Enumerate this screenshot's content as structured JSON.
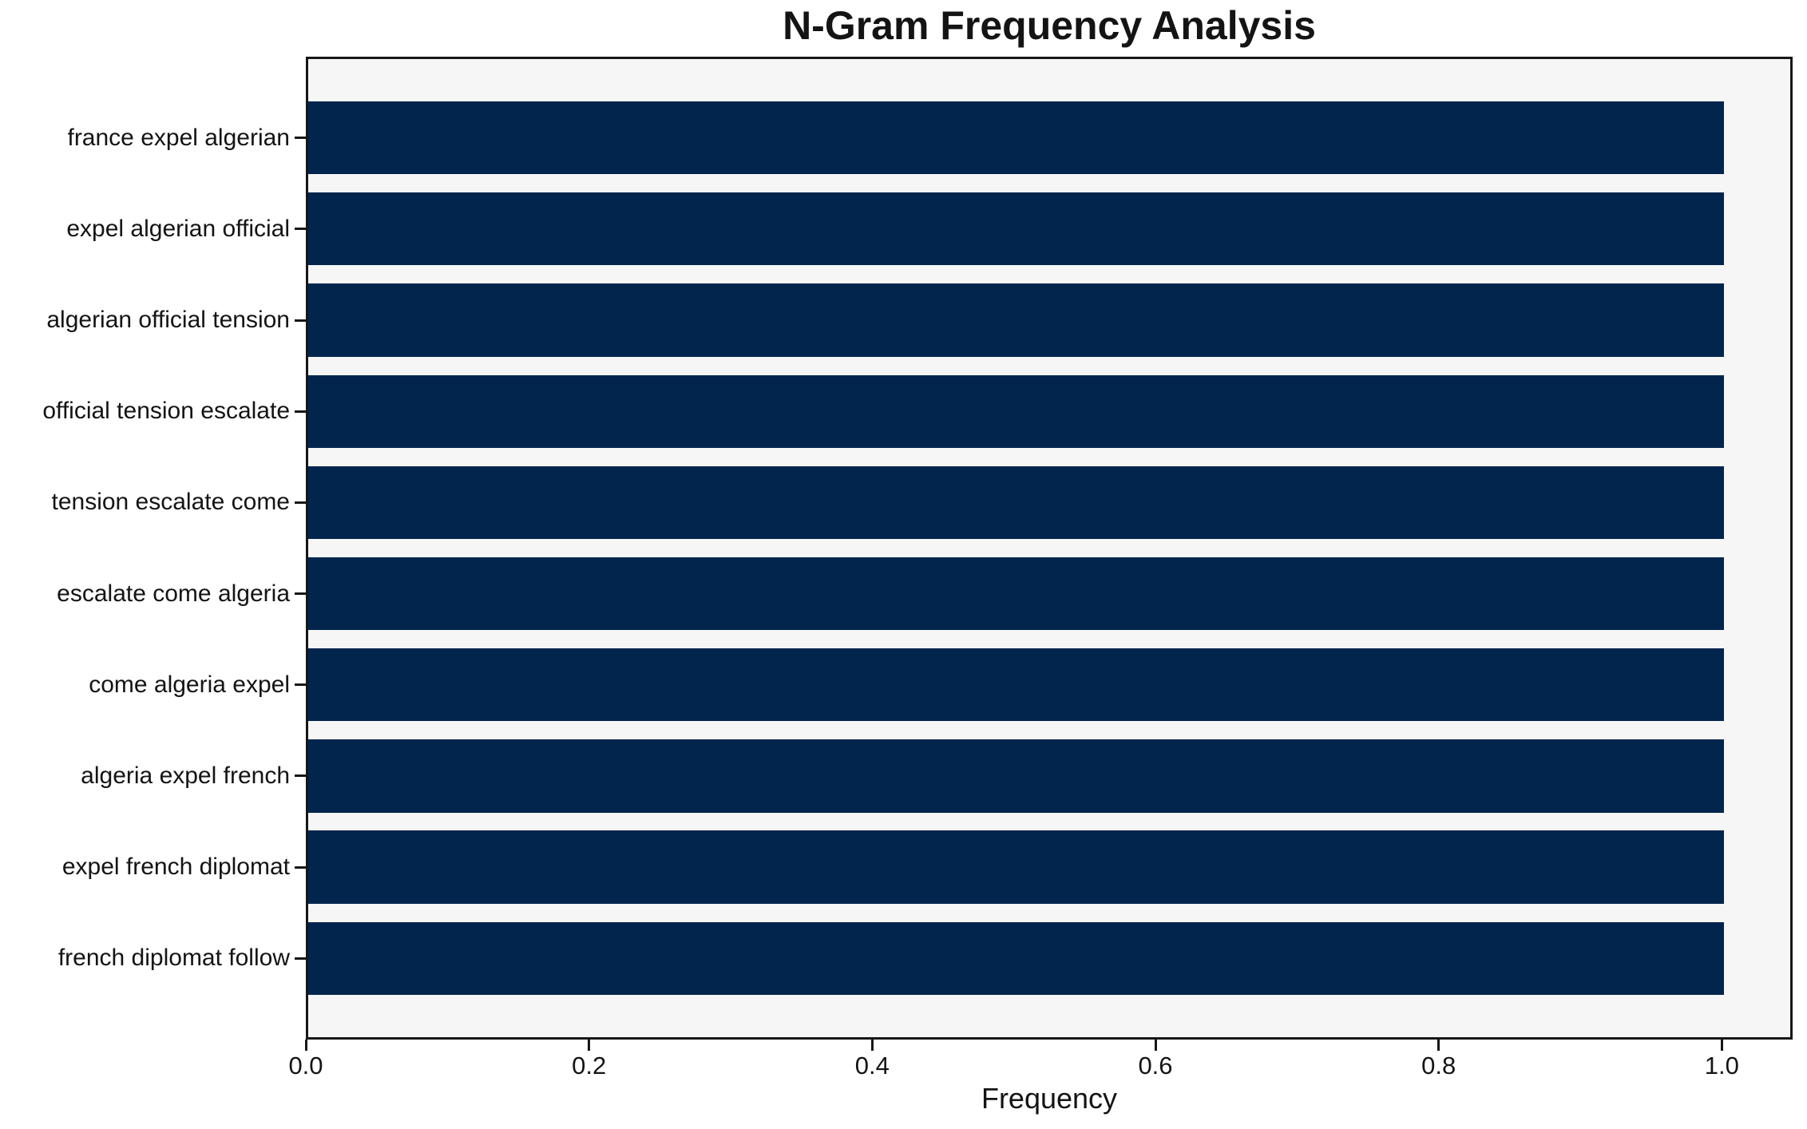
{
  "chart_data": {
    "type": "bar",
    "orientation": "horizontal",
    "title": "N-Gram Frequency Analysis",
    "xlabel": "Frequency",
    "ylabel": "",
    "categories": [
      "france expel algerian",
      "expel algerian official",
      "algerian official tension",
      "official tension escalate",
      "tension escalate come",
      "escalate come algeria",
      "come algeria expel",
      "algeria expel french",
      "expel french diplomat",
      "french diplomat follow"
    ],
    "values": [
      1.0,
      1.0,
      1.0,
      1.0,
      1.0,
      1.0,
      1.0,
      1.0,
      1.0,
      1.0
    ],
    "xlim": [
      0.0,
      1.05
    ],
    "xticks": [
      "0.0",
      "0.2",
      "0.4",
      "0.6",
      "0.8",
      "1.0"
    ],
    "xtick_values": [
      0.0,
      0.2,
      0.4,
      0.6,
      0.8,
      1.0
    ],
    "grid": false,
    "legend": "none",
    "bar_color": "#02254d",
    "plot_background": "#f6f6f7",
    "figure_background": "#ffffff",
    "bar_fraction": 0.8,
    "axis_margin": 0.05
  }
}
